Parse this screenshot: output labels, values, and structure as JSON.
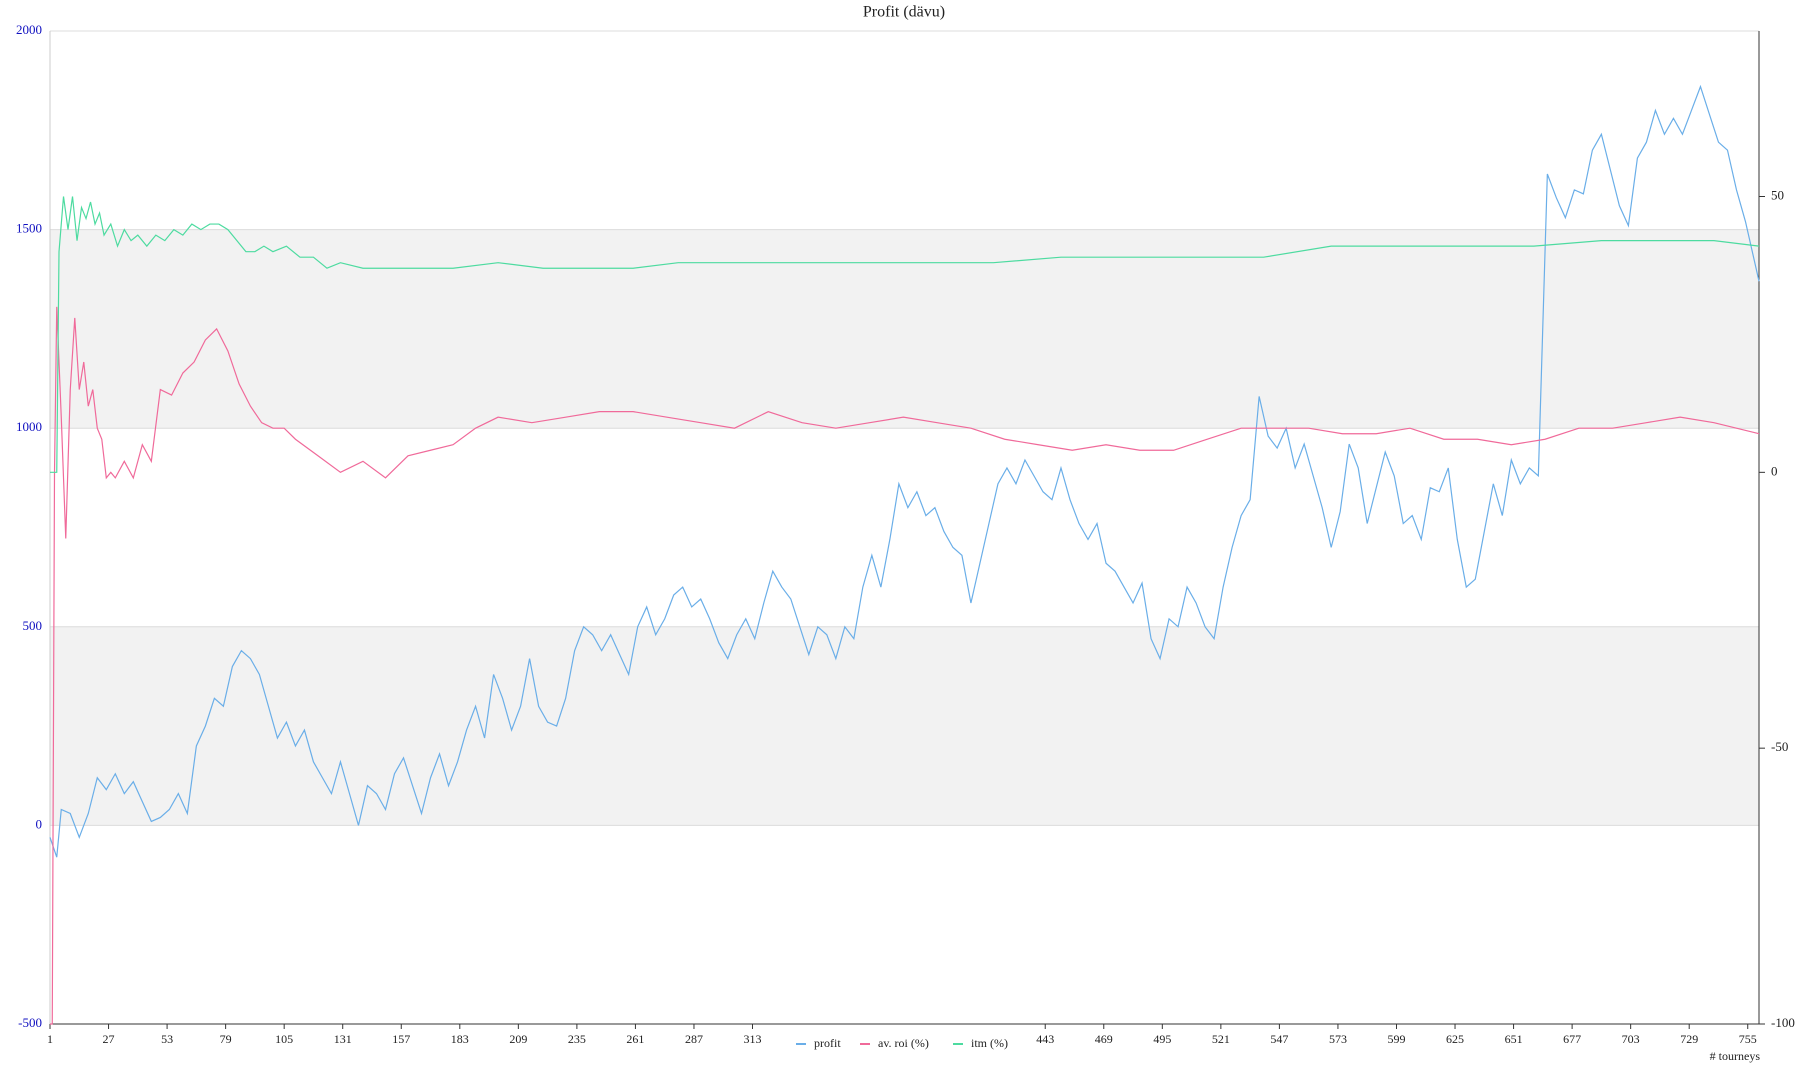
{
  "chart_data": {
    "type": "line",
    "title": "Profit  (dävu)",
    "xlabel": "# tourneys",
    "xlim": [
      1,
      760
    ],
    "xticks": [
      1,
      27,
      53,
      79,
      105,
      131,
      157,
      183,
      209,
      235,
      261,
      287,
      313,
      443,
      469,
      495,
      521,
      547,
      573,
      599,
      625,
      651,
      677,
      703,
      729,
      755
    ],
    "ylim": [
      -500,
      2000
    ],
    "yticks": [
      -500,
      0,
      500,
      1000,
      1500,
      2000
    ],
    "y2lim": [
      -100,
      80
    ],
    "y2ticks": [
      -100,
      -50,
      0,
      50
    ],
    "grid": true,
    "banded": true,
    "legend": "bottom",
    "series": [
      {
        "name": "profit",
        "color": "#6aaee8",
        "x": [
          1,
          4,
          6,
          10,
          14,
          18,
          22,
          26,
          30,
          34,
          38,
          42,
          46,
          50,
          54,
          58,
          62,
          66,
          70,
          74,
          78,
          82,
          86,
          90,
          94,
          98,
          102,
          106,
          110,
          114,
          118,
          122,
          126,
          130,
          134,
          138,
          142,
          146,
          150,
          154,
          158,
          162,
          166,
          170,
          174,
          178,
          182,
          186,
          190,
          194,
          198,
          202,
          206,
          210,
          214,
          218,
          222,
          226,
          230,
          234,
          238,
          242,
          246,
          250,
          254,
          258,
          262,
          266,
          270,
          274,
          278,
          282,
          286,
          290,
          294,
          298,
          302,
          306,
          310,
          314,
          318,
          322,
          326,
          330,
          334,
          338,
          342,
          346,
          350,
          354,
          358,
          362,
          366,
          370,
          374,
          378,
          382,
          386,
          390,
          394,
          398,
          402,
          406,
          410,
          414,
          418,
          422,
          426,
          430,
          434,
          438,
          442,
          446,
          450,
          454,
          458,
          462,
          466,
          470,
          474,
          478,
          482,
          486,
          490,
          494,
          498,
          502,
          506,
          510,
          514,
          518,
          522,
          526,
          530,
          534,
          538,
          542,
          546,
          550,
          554,
          558,
          562,
          566,
          570,
          574,
          578,
          582,
          586,
          590,
          594,
          598,
          602,
          606,
          610,
          614,
          618,
          622,
          626,
          630,
          634,
          638,
          642,
          646,
          650,
          654,
          658,
          662,
          666,
          670,
          674,
          678,
          682,
          686,
          690,
          694,
          698,
          702,
          706,
          710,
          714,
          718,
          722,
          726,
          730,
          734,
          738,
          742,
          746,
          750,
          754,
          758,
          760
        ],
        "values": [
          -30,
          -80,
          40,
          30,
          -30,
          30,
          120,
          90,
          130,
          80,
          110,
          60,
          10,
          20,
          40,
          80,
          30,
          200,
          250,
          320,
          300,
          400,
          440,
          420,
          380,
          300,
          220,
          260,
          200,
          240,
          160,
          120,
          80,
          160,
          80,
          0,
          100,
          80,
          40,
          130,
          170,
          100,
          30,
          120,
          180,
          100,
          160,
          240,
          300,
          220,
          380,
          320,
          240,
          300,
          420,
          300,
          260,
          250,
          320,
          440,
          500,
          480,
          440,
          480,
          430,
          380,
          500,
          550,
          480,
          520,
          580,
          600,
          550,
          570,
          520,
          460,
          420,
          480,
          520,
          470,
          560,
          640,
          600,
          570,
          500,
          430,
          500,
          480,
          420,
          500,
          470,
          600,
          680,
          600,
          720,
          860,
          800,
          840,
          780,
          800,
          740,
          700,
          680,
          560,
          660,
          760,
          860,
          900,
          860,
          920,
          880,
          840,
          820,
          900,
          820,
          760,
          720,
          760,
          660,
          640,
          600,
          560,
          610,
          470,
          420,
          520,
          500,
          600,
          560,
          500,
          470,
          600,
          700,
          780,
          820,
          1080,
          980,
          950,
          1000,
          900,
          960,
          880,
          800,
          700,
          790,
          960,
          900,
          760,
          850,
          940,
          880,
          760,
          780,
          720,
          850,
          840,
          900,
          720,
          600,
          620,
          740,
          860,
          780,
          920,
          860,
          900,
          880,
          1640,
          1580,
          1530,
          1600,
          1590,
          1700,
          1740,
          1650,
          1560,
          1510,
          1680,
          1720,
          1800,
          1740,
          1780,
          1740,
          1800,
          1860,
          1790,
          1720,
          1700,
          1600,
          1520,
          1420,
          1370
        ]
      },
      {
        "name": "av. roi (%)",
        "color": "#f06a9a",
        "axis": "y2",
        "x": [
          1,
          2,
          3,
          4,
          5,
          6,
          8,
          10,
          12,
          14,
          16,
          18,
          20,
          22,
          24,
          26,
          28,
          30,
          34,
          38,
          42,
          46,
          50,
          55,
          60,
          65,
          70,
          75,
          80,
          85,
          90,
          95,
          100,
          105,
          110,
          120,
          130,
          140,
          150,
          160,
          170,
          180,
          190,
          200,
          215,
          230,
          245,
          260,
          275,
          290,
          305,
          320,
          335,
          350,
          365,
          380,
          395,
          410,
          425,
          440,
          455,
          470,
          485,
          500,
          515,
          530,
          545,
          560,
          575,
          590,
          605,
          620,
          635,
          650,
          665,
          680,
          695,
          710,
          725,
          740,
          760
        ],
        "values": [
          -100,
          -100,
          0,
          30,
          20,
          10,
          -12,
          15,
          28,
          15,
          20,
          12,
          15,
          8,
          6,
          -1,
          0,
          -1,
          2,
          -1,
          5,
          2,
          15,
          14,
          18,
          20,
          24,
          26,
          22,
          16,
          12,
          9,
          8,
          8,
          6,
          3,
          0,
          2,
          -1,
          3,
          4,
          5,
          8,
          10,
          9,
          10,
          11,
          11,
          10,
          9,
          8,
          11,
          9,
          8,
          9,
          10,
          9,
          8,
          6,
          5,
          4,
          5,
          4,
          4,
          6,
          8,
          8,
          8,
          7,
          7,
          8,
          6,
          6,
          5,
          6,
          8,
          8,
          9,
          10,
          9,
          7
        ]
      },
      {
        "name": "itm (%)",
        "color": "#4ddba0",
        "axis": "y2",
        "x": [
          1,
          4,
          5,
          7,
          9,
          11,
          13,
          15,
          17,
          19,
          21,
          23,
          25,
          28,
          31,
          34,
          37,
          40,
          44,
          48,
          52,
          56,
          60,
          64,
          68,
          72,
          76,
          80,
          84,
          88,
          92,
          96,
          100,
          106,
          112,
          118,
          124,
          130,
          140,
          150,
          160,
          170,
          180,
          200,
          220,
          240,
          260,
          280,
          300,
          330,
          360,
          390,
          420,
          450,
          480,
          510,
          540,
          570,
          600,
          630,
          660,
          690,
          720,
          740,
          760
        ],
        "values": [
          0,
          0,
          40,
          50,
          44,
          50,
          42,
          48,
          46,
          49,
          45,
          47,
          43,
          45,
          41,
          44,
          42,
          43,
          41,
          43,
          42,
          44,
          43,
          45,
          44,
          45,
          45,
          44,
          42,
          40,
          40,
          41,
          40,
          41,
          39,
          39,
          37,
          38,
          37,
          37,
          37,
          37,
          37,
          38,
          37,
          37,
          37,
          38,
          38,
          38,
          38,
          38,
          38,
          39,
          39,
          39,
          39,
          41,
          41,
          41,
          41,
          42,
          42,
          42,
          41
        ]
      }
    ]
  }
}
